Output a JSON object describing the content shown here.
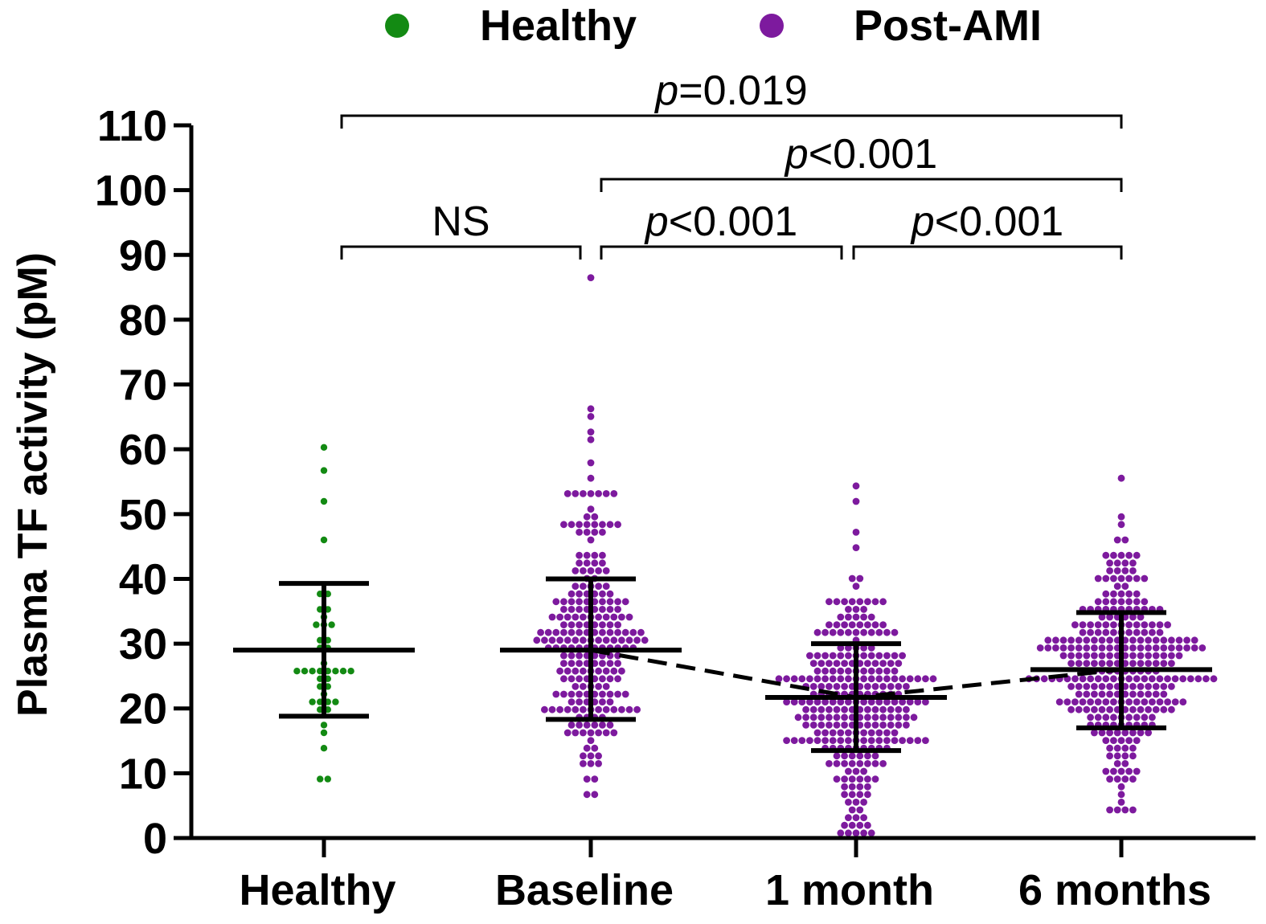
{
  "chart_data": {
    "type": "scatter",
    "subtype": "dot-plot with mean and SD",
    "title": "",
    "xlabel": "",
    "ylabel": "Plasma TF activity (pM)",
    "ylim": [
      0,
      110
    ],
    "yticks": [
      0,
      10,
      20,
      30,
      40,
      50,
      60,
      70,
      80,
      90,
      100,
      110
    ],
    "ytick_labels": [
      "0",
      "10",
      "20",
      "30",
      "40",
      "50",
      "60",
      "70",
      "80",
      "90",
      "100",
      "110"
    ],
    "categories": [
      "Healthy",
      "Baseline",
      "1 month",
      "6 months"
    ],
    "legend": [
      {
        "label": "Healthy",
        "color": "#138a13"
      },
      {
        "label": "Post-AMI",
        "color": "#7d1a9e"
      }
    ],
    "groups": [
      {
        "category": "Healthy",
        "series": "Healthy",
        "color": "#138a13",
        "n": 40,
        "mean": 29,
        "sd_low": 18.8,
        "sd_high": 39.3,
        "ymin": 9.5,
        "ymax": 60.5,
        "outliers": [
          60.5,
          56.8,
          46.2
        ]
      },
      {
        "category": "Baseline",
        "series": "Post-AMI",
        "color": "#7d1a9e",
        "n": 230,
        "mean": 29,
        "sd_low": 18.3,
        "sd_high": 40,
        "ymin": 7,
        "ymax": 87,
        "outliers": [
          87,
          66.5,
          64.5,
          63,
          61.5,
          58.5,
          56
        ]
      },
      {
        "category": "1 month",
        "series": "Post-AMI",
        "color": "#7d1a9e",
        "n": 280,
        "mean": 21.7,
        "sd_low": 13.5,
        "sd_high": 30,
        "ymin": 0.5,
        "ymax": 54,
        "outliers": [
          54,
          52,
          47,
          45
        ]
      },
      {
        "category": "6 months",
        "series": "Post-AMI",
        "color": "#7d1a9e",
        "n": 300,
        "mean": 26,
        "sd_low": 17,
        "sd_high": 34.8,
        "ymin": 4,
        "ymax": 55,
        "outliers": [
          55,
          50,
          48
        ]
      }
    ],
    "trend_line": {
      "style": "dashed",
      "from": "Baseline",
      "to": "6 months",
      "values": [
        29,
        21.7,
        26
      ]
    },
    "annotations": [
      {
        "from": "Healthy",
        "to": "Baseline",
        "label": "NS",
        "italic_prefix": "",
        "rest": "NS",
        "level": 90
      },
      {
        "from": "Baseline",
        "to": "1 month",
        "label": "p<0.001",
        "italic_prefix": "p",
        "rest": "<0.001",
        "level": 90
      },
      {
        "from": "1 month",
        "to": "6 months",
        "label": "p<0.001",
        "italic_prefix": "p",
        "rest": "<0.001",
        "level": 90
      },
      {
        "from": "Baseline",
        "to": "6 months",
        "label": "p<0.001",
        "italic_prefix": "p",
        "rest": "<0.001",
        "level": 100
      },
      {
        "from": "Healthy",
        "to": "6 months",
        "label": "p=0.019",
        "italic_prefix": "p",
        "rest": "=0.019",
        "level": 110
      }
    ]
  }
}
